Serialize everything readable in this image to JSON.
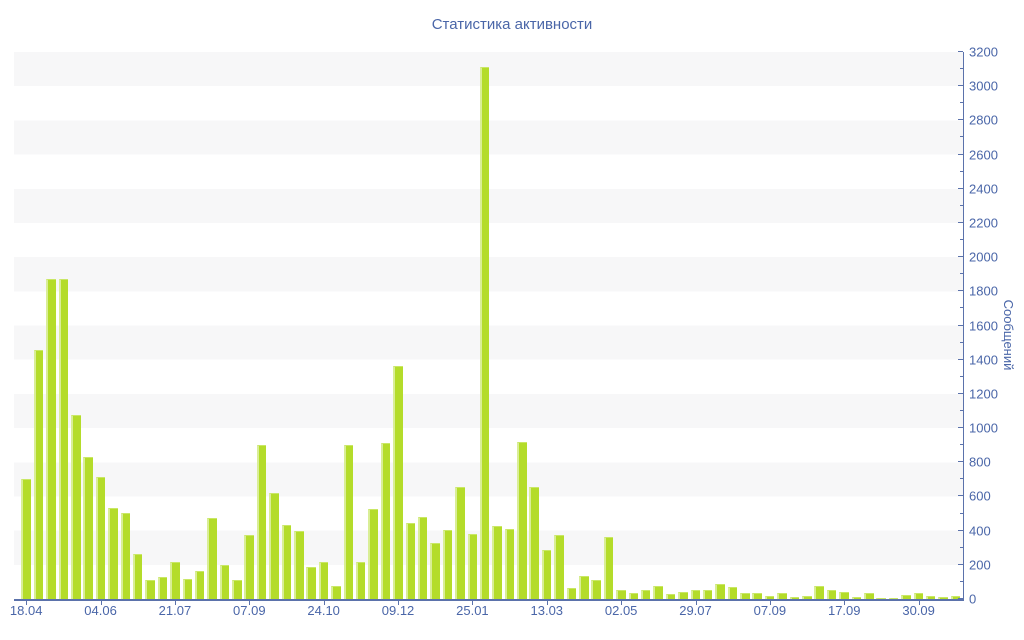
{
  "title": "Статистика активности",
  "y_axis_title": "Сообщений",
  "colors": {
    "bar_fill": "#b4dc2a",
    "bar_highlight": "#d9ee96",
    "axis_line": "#5b72ab",
    "text": "#4a66a8",
    "band": "#f7f7f8",
    "background": "#ffffff"
  },
  "chart_data": {
    "type": "bar",
    "title": "Статистика активности",
    "xlabel": "",
    "ylabel": "Сообщений",
    "ylim": [
      0,
      3200
    ],
    "y_major_step": 200,
    "y_minor_step": 100,
    "grid": "alternating horizontal bands, no lines",
    "legend": "none",
    "values": [
      700,
      1455,
      1870,
      1870,
      1075,
      830,
      715,
      535,
      505,
      265,
      110,
      130,
      215,
      115,
      165,
      475,
      200,
      110,
      375,
      900,
      620,
      435,
      400,
      185,
      215,
      75,
      900,
      215,
      525,
      915,
      1365,
      445,
      480,
      330,
      405,
      655,
      380,
      3110,
      425,
      410,
      920,
      655,
      285,
      375,
      65,
      135,
      110,
      360,
      50,
      35,
      50,
      75,
      30,
      40,
      55,
      50,
      90,
      70,
      35,
      35,
      15,
      35,
      10,
      20,
      75,
      50,
      40,
      10,
      35,
      5,
      5,
      25,
      35,
      15,
      10,
      20
    ],
    "x_tick_labels": [
      {
        "index": 0,
        "label": "18.04"
      },
      {
        "index": 6,
        "label": "04.06"
      },
      {
        "index": 12,
        "label": "21.07"
      },
      {
        "index": 18,
        "label": "07.09"
      },
      {
        "index": 24,
        "label": "24.10"
      },
      {
        "index": 30,
        "label": "09.12"
      },
      {
        "index": 36,
        "label": "25.01"
      },
      {
        "index": 42,
        "label": "13.03"
      },
      {
        "index": 48,
        "label": "02.05"
      },
      {
        "index": 54,
        "label": "29.07"
      },
      {
        "index": 60,
        "label": "07.09"
      },
      {
        "index": 66,
        "label": "17.09"
      },
      {
        "index": 72,
        "label": "30.09"
      }
    ],
    "y_tick_labels": [
      "0",
      "200",
      "400",
      "600",
      "800",
      "1000",
      "1200",
      "1400",
      "1600",
      "1800",
      "2000",
      "2200",
      "2400",
      "2600",
      "2800",
      "3000",
      "3200"
    ]
  }
}
